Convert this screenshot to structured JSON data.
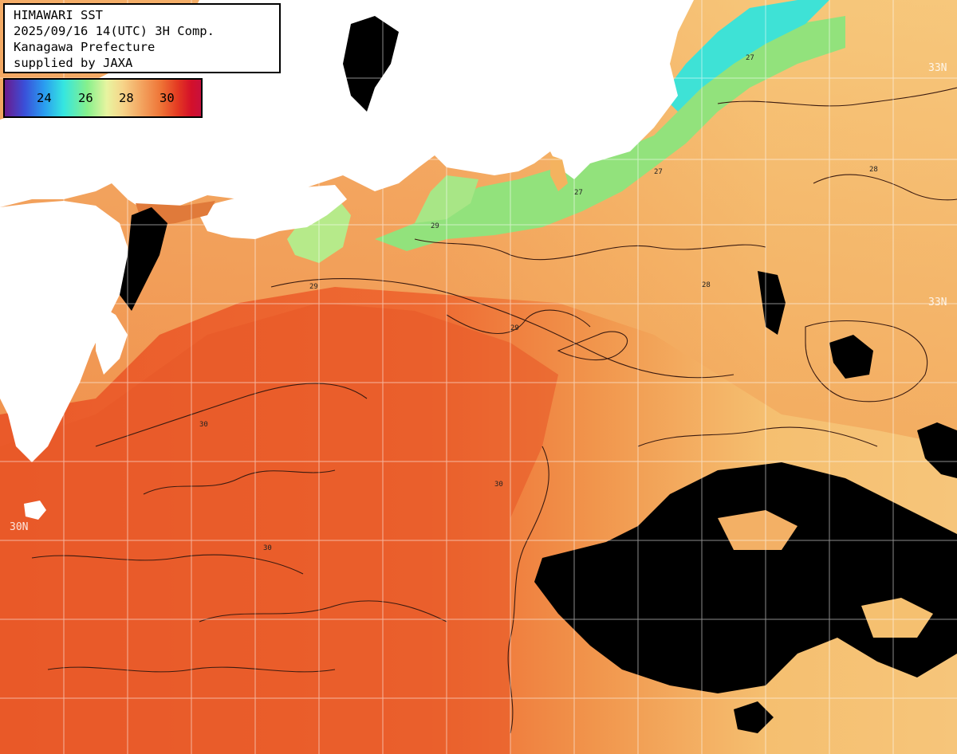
{
  "header": {
    "line1": "HIMAWARI SST",
    "line2": "2025/09/16 14(UTC) 3H Comp.",
    "line3": "Kanagawa Prefecture",
    "line4": "supplied by JAXA"
  },
  "legend": {
    "ticks": [
      "24",
      "26",
      "28",
      "30"
    ]
  },
  "latitude_labels": [
    "33N",
    "33N",
    "30N"
  ],
  "contour_labels": [
    "27",
    "28",
    "29",
    "30"
  ],
  "colors": {
    "land": "#ffffff",
    "cloud": "#000000",
    "sst_30": "#e8602e",
    "sst_29": "#f29850",
    "sst_28": "#f6c878",
    "sst_27": "#9ae680",
    "sst_26": "#3ee8d8"
  }
}
